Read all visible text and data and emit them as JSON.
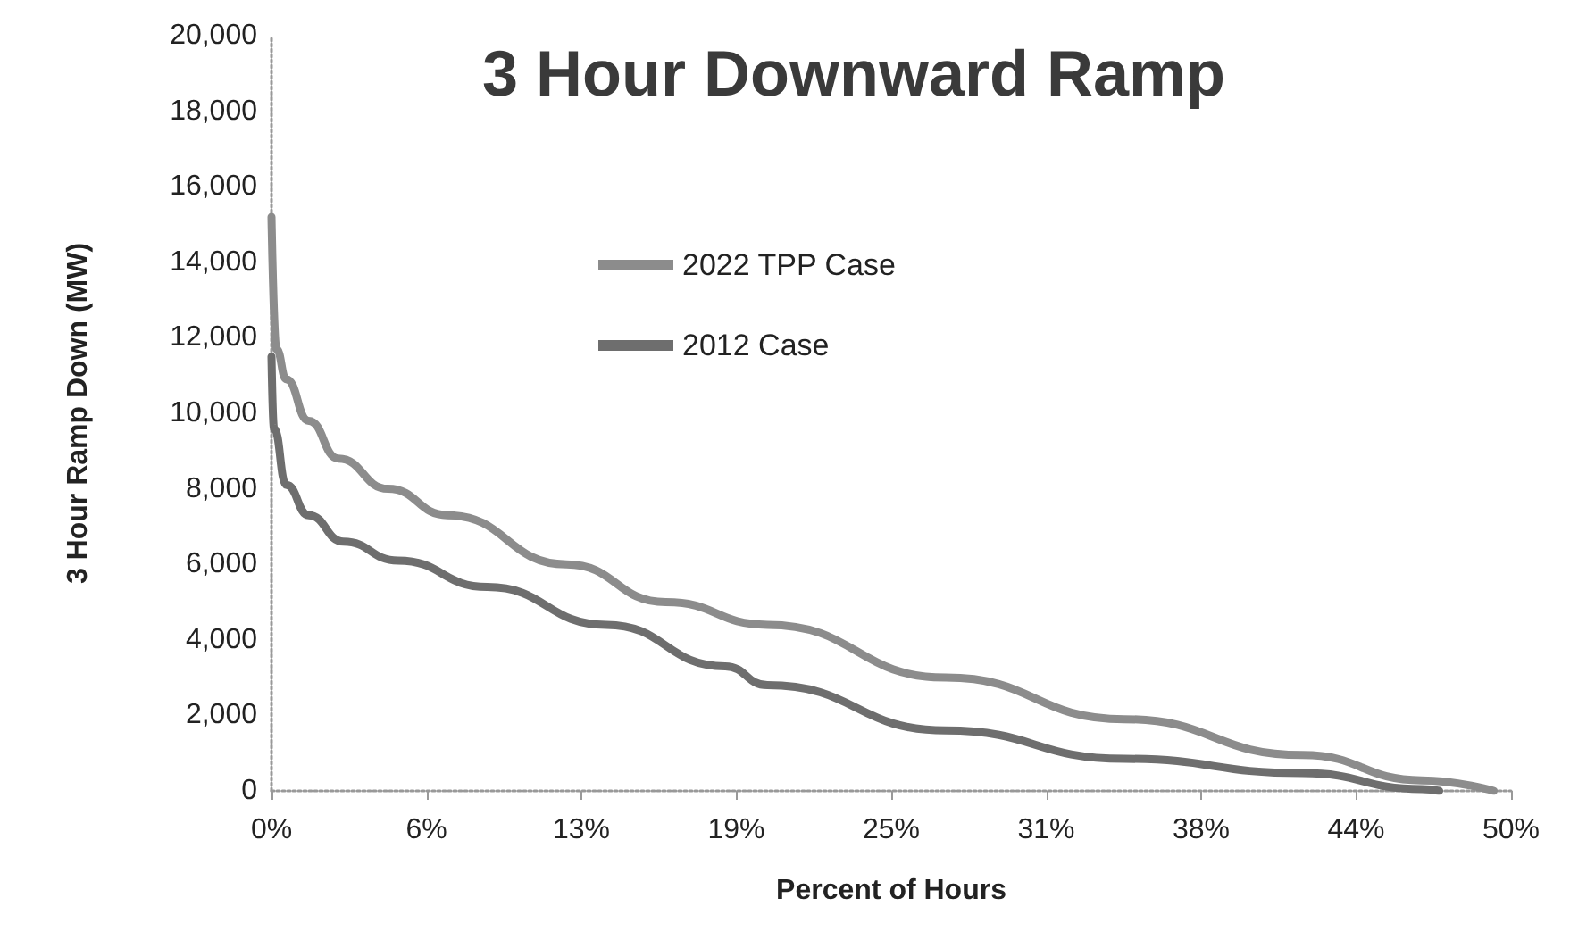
{
  "chart_data": {
    "type": "line",
    "title": "3 Hour Downward Ramp",
    "xlabel": "Percent of Hours",
    "ylabel": "3 Hour Ramp Down (MW)",
    "xlim": [
      0,
      50
    ],
    "xticks": [
      {
        "value": 0,
        "label": "0%"
      },
      {
        "value": 6.25,
        "label": "6%"
      },
      {
        "value": 12.5,
        "label": "13%"
      },
      {
        "value": 18.75,
        "label": "19%"
      },
      {
        "value": 25,
        "label": "25%"
      },
      {
        "value": 31.25,
        "label": "31%"
      },
      {
        "value": 37.5,
        "label": "38%"
      },
      {
        "value": 43.75,
        "label": "44%"
      },
      {
        "value": 50,
        "label": "50%"
      }
    ],
    "ylim": [
      0,
      20000
    ],
    "yticks": [
      {
        "value": 0,
        "label": "0"
      },
      {
        "value": 2000,
        "label": "2,000"
      },
      {
        "value": 4000,
        "label": "4,000"
      },
      {
        "value": 6000,
        "label": "6,000"
      },
      {
        "value": 8000,
        "label": "8,000"
      },
      {
        "value": 10000,
        "label": "10,000"
      },
      {
        "value": 12000,
        "label": "12,000"
      },
      {
        "value": 14000,
        "label": "14,000"
      },
      {
        "value": 16000,
        "label": "16,000"
      },
      {
        "value": 18000,
        "label": "18,000"
      },
      {
        "value": 20000,
        "label": "20,000"
      }
    ],
    "grid": false,
    "legend": "top left",
    "marker": "none",
    "line_style": "solid",
    "series": [
      {
        "name": "2022 TPP Case",
        "color": "#8c8c8c",
        "x": [
          0,
          0.2,
          0.6,
          1.5,
          2.7,
          4.7,
          7.1,
          11.9,
          15.9,
          20,
          27.2,
          34.4,
          41.6,
          46.4,
          49.3
        ],
        "values": [
          15200,
          11700,
          10900,
          9800,
          8800,
          8000,
          7300,
          6000,
          5000,
          4400,
          3000,
          1900,
          950,
          280,
          0
        ]
      },
      {
        "name": "2012 Case",
        "color": "#6e6e6e",
        "x": [
          0,
          0.1,
          0.6,
          1.5,
          2.9,
          5.1,
          8.7,
          13.5,
          18.3,
          20,
          27.2,
          34.4,
          41.6,
          46.4,
          47.1
        ],
        "values": [
          11500,
          9600,
          8100,
          7300,
          6600,
          6100,
          5400,
          4400,
          3300,
          2800,
          1600,
          850,
          470,
          50,
          0
        ]
      }
    ]
  }
}
